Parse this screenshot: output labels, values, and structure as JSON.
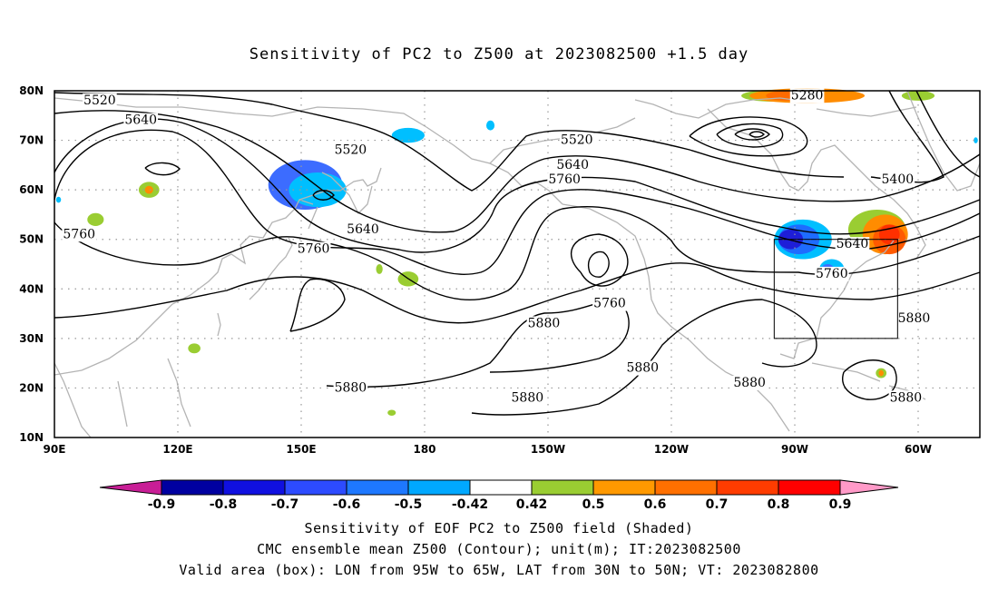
{
  "title": "Sensitivity of PC2 to Z500 at 2023082500 +1.5 day",
  "map": {
    "lat_labels": [
      "80N",
      "70N",
      "60N",
      "50N",
      "40N",
      "30N",
      "20N",
      "10N"
    ],
    "lat_values": [
      80,
      70,
      60,
      50,
      40,
      30,
      20,
      10
    ],
    "lon_labels": [
      "90E",
      "120E",
      "150E",
      "180",
      "150W",
      "120W",
      "90W",
      "60W"
    ],
    "lon_values": [
      90,
      120,
      150,
      180,
      210,
      240,
      270,
      300
    ],
    "lon_range": [
      90,
      315
    ],
    "lat_range": [
      10,
      80
    ],
    "box": {
      "lon": [
        265,
        295
      ],
      "lat": [
        30,
        50
      ]
    },
    "contour_color": "#000000",
    "coast_color": "#b4b4b4",
    "grid_color": "#999999",
    "contour_labels": [
      {
        "text": "5520",
        "lon": 101,
        "lat": 78
      },
      {
        "text": "5640",
        "lon": 111,
        "lat": 74
      },
      {
        "text": "5520",
        "lon": 162,
        "lat": 68
      },
      {
        "text": "5760",
        "lon": 96,
        "lat": 51
      },
      {
        "text": "5640",
        "lon": 165,
        "lat": 52
      },
      {
        "text": "5760",
        "lon": 153,
        "lat": 48
      },
      {
        "text": "5520",
        "lon": 217,
        "lat": 70
      },
      {
        "text": "5640",
        "lon": 216,
        "lat": 65
      },
      {
        "text": "5760",
        "lon": 214,
        "lat": 62
      },
      {
        "text": "5760",
        "lon": 225,
        "lat": 37
      },
      {
        "text": "5880",
        "lon": 209,
        "lat": 33
      },
      {
        "text": "5880",
        "lon": 233,
        "lat": 24
      },
      {
        "text": "5880",
        "lon": 259,
        "lat": 21
      },
      {
        "text": "5880",
        "lon": 205,
        "lat": 18
      },
      {
        "text": "5880",
        "lon": 162,
        "lat": 20
      },
      {
        "text": "5280",
        "lon": 273,
        "lat": 79
      },
      {
        "text": "5400",
        "lon": 295,
        "lat": 62
      },
      {
        "text": "5640",
        "lon": 284,
        "lat": 49
      },
      {
        "text": "5760",
        "lon": 279,
        "lat": 43
      },
      {
        "text": "5880",
        "lon": 299,
        "lat": 34
      },
      {
        "text": "5880",
        "lon": 297,
        "lat": 18
      }
    ],
    "shading": [
      {
        "color": "#1e1ed8",
        "lon": 149,
        "lat": 61,
        "rx": 5,
        "ry": 3
      },
      {
        "color": "#3c6cff",
        "lon": 151,
        "lat": 61,
        "rx": 9,
        "ry": 5
      },
      {
        "color": "#00bfff",
        "lon": 154,
        "lat": 60,
        "rx": 7,
        "ry": 3.5
      },
      {
        "color": "#00bfff",
        "lon": 176,
        "lat": 71,
        "rx": 4,
        "ry": 1.5
      },
      {
        "color": "#00bfff",
        "lon": 196,
        "lat": 73,
        "rx": 1,
        "ry": 1
      },
      {
        "color": "#00bfff",
        "lon": 213,
        "lat": 62,
        "rx": 1.2,
        "ry": 1
      },
      {
        "color": "#00bfff",
        "lon": 272,
        "lat": 50,
        "rx": 7,
        "ry": 4
      },
      {
        "color": "#1e6cff",
        "lon": 271,
        "lat": 50,
        "rx": 5,
        "ry": 3
      },
      {
        "color": "#1e1ed8",
        "lon": 269,
        "lat": 50,
        "rx": 3,
        "ry": 2
      },
      {
        "color": "#00bfff",
        "lon": 279,
        "lat": 44,
        "rx": 3,
        "ry": 2
      },
      {
        "color": "#3c6cff",
        "lon": 278,
        "lat": 44,
        "rx": 1.5,
        "ry": 1
      },
      {
        "color": "#9acd32",
        "lon": 290,
        "lat": 52,
        "rx": 7,
        "ry": 4
      },
      {
        "color": "#ff8c00",
        "lon": 292,
        "lat": 51,
        "rx": 5.5,
        "ry": 4
      },
      {
        "color": "#ff5a00",
        "lon": 293,
        "lat": 50,
        "rx": 4,
        "ry": 3
      },
      {
        "color": "#ff3000",
        "lon": 293,
        "lat": 51,
        "rx": 2.5,
        "ry": 2
      },
      {
        "color": "#9acd32",
        "lon": 265,
        "lat": 79,
        "rx": 8,
        "ry": 1.2
      },
      {
        "color": "#ff8c00",
        "lon": 273,
        "lat": 79,
        "rx": 14,
        "ry": 1.5
      },
      {
        "color": "#ff6a00",
        "lon": 268,
        "lat": 79,
        "rx": 5,
        "ry": 1
      },
      {
        "color": "#9acd32",
        "lon": 300,
        "lat": 79,
        "rx": 4,
        "ry": 1
      },
      {
        "color": "#9acd32",
        "lon": 113,
        "lat": 60,
        "rx": 2.5,
        "ry": 1.6
      },
      {
        "color": "#ff8c00",
        "lon": 113,
        "lat": 60,
        "rx": 1,
        "ry": 0.8
      },
      {
        "color": "#9acd32",
        "lon": 100,
        "lat": 54,
        "rx": 2,
        "ry": 1.3
      },
      {
        "color": "#9acd32",
        "lon": 176,
        "lat": 42,
        "rx": 2.5,
        "ry": 1.5
      },
      {
        "color": "#9acd32",
        "lon": 124,
        "lat": 28,
        "rx": 1.5,
        "ry": 1
      },
      {
        "color": "#9acd32",
        "lon": 169,
        "lat": 44,
        "rx": 0.8,
        "ry": 1
      },
      {
        "color": "#9acd32",
        "lon": 291,
        "lat": 23,
        "rx": 1.3,
        "ry": 1
      },
      {
        "color": "#ff8c00",
        "lon": 291,
        "lat": 23,
        "rx": 0.6,
        "ry": 0.6
      },
      {
        "color": "#9acd32",
        "lon": 172,
        "lat": 15,
        "rx": 1,
        "ry": 0.6
      },
      {
        "color": "#00bfff",
        "lon": 91,
        "lat": 58,
        "rx": 0.6,
        "ry": 0.6
      },
      {
        "color": "#00bfff",
        "lon": 314,
        "lat": 70,
        "rx": 0.5,
        "ry": 0.6
      }
    ]
  },
  "colorbar": {
    "labels": [
      "-0.9",
      "-0.8",
      "-0.7",
      "-0.6",
      "-0.5",
      "-0.42",
      "0.42",
      "0.5",
      "0.6",
      "0.7",
      "0.8",
      "0.9"
    ],
    "colors": [
      "#0000a0",
      "#1010e0",
      "#2d4bff",
      "#1e78ff",
      "#00a8ff",
      "#ffffff",
      "#9acd32",
      "#ff9900",
      "#ff7000",
      "#ff3c00",
      "#ff0000"
    ],
    "low_arrow_color": "#c81e96",
    "high_arrow_color": "#ff9ac8"
  },
  "footer": {
    "line1": "Sensitivity of EOF PC2 to Z500 field (Shaded)",
    "line2": "CMC ensemble mean Z500 (Contour); unit(m); IT:2023082500",
    "line3": "Valid area (box): LON from 95W to 65W, LAT from 30N to 50N; VT: 2023082800"
  }
}
